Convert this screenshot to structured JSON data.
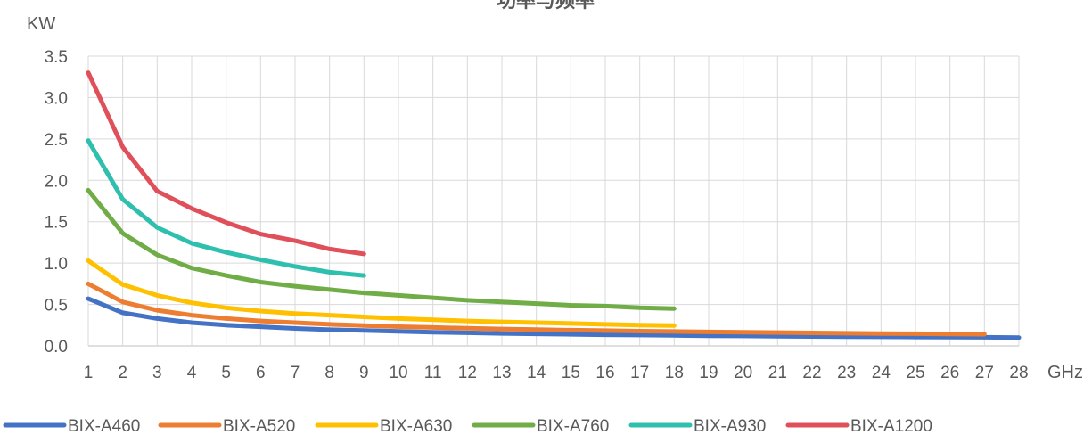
{
  "chart_data": {
    "type": "line",
    "title": "功率与频率",
    "ylabel": "KW",
    "xlabel": "GHz",
    "x": [
      1,
      2,
      3,
      4,
      5,
      6,
      7,
      8,
      9,
      10,
      11,
      12,
      13,
      14,
      15,
      16,
      17,
      18,
      19,
      20,
      21,
      22,
      23,
      24,
      25,
      26,
      27,
      28
    ],
    "xlim": [
      1,
      28
    ],
    "ylim": [
      0,
      3.5
    ],
    "yticks": [
      "0.0",
      "0.5",
      "1.0",
      "1.5",
      "2.0",
      "2.5",
      "3.0",
      "3.5"
    ],
    "grid": true,
    "legend_position": "bottom",
    "series": [
      {
        "name": "BIX-A460",
        "color": "#4472C4",
        "x": [
          1,
          2,
          3,
          4,
          5,
          6,
          7,
          8,
          9,
          10,
          11,
          12,
          13,
          14,
          15,
          16,
          17,
          18,
          19,
          20,
          21,
          22,
          23,
          24,
          25,
          26,
          27,
          28
        ],
        "values": [
          0.57,
          0.4,
          0.33,
          0.28,
          0.25,
          0.23,
          0.21,
          0.195,
          0.185,
          0.175,
          0.165,
          0.157,
          0.15,
          0.144,
          0.139,
          0.134,
          0.13,
          0.126,
          0.122,
          0.119,
          0.116,
          0.113,
          0.111,
          0.109,
          0.107,
          0.105,
          0.103,
          0.1
        ]
      },
      {
        "name": "BIX-A520",
        "color": "#ED7D31",
        "x": [
          1,
          2,
          3,
          4,
          5,
          6,
          7,
          8,
          9,
          10,
          11,
          12,
          13,
          14,
          15,
          16,
          17,
          18,
          19,
          20,
          21,
          22,
          23,
          24,
          25,
          26,
          27
        ],
        "values": [
          0.75,
          0.53,
          0.43,
          0.37,
          0.33,
          0.3,
          0.28,
          0.26,
          0.245,
          0.232,
          0.222,
          0.212,
          0.204,
          0.196,
          0.19,
          0.184,
          0.178,
          0.173,
          0.168,
          0.164,
          0.16,
          0.156,
          0.152,
          0.149,
          0.146,
          0.143,
          0.14
        ]
      },
      {
        "name": "BIX-A630",
        "color": "#FFC000",
        "x": [
          1,
          2,
          3,
          4,
          5,
          6,
          7,
          8,
          9,
          10,
          11,
          12,
          13,
          14,
          15,
          16,
          17,
          18
        ],
        "values": [
          1.03,
          0.74,
          0.61,
          0.52,
          0.46,
          0.42,
          0.39,
          0.37,
          0.35,
          0.33,
          0.315,
          0.3,
          0.29,
          0.28,
          0.27,
          0.26,
          0.25,
          0.245
        ]
      },
      {
        "name": "BIX-A760",
        "color": "#70AD47",
        "x": [
          1,
          2,
          3,
          4,
          5,
          6,
          7,
          8,
          9,
          10,
          11,
          12,
          13,
          14,
          15,
          16,
          17,
          18
        ],
        "values": [
          1.88,
          1.36,
          1.1,
          0.94,
          0.85,
          0.77,
          0.72,
          0.68,
          0.64,
          0.61,
          0.58,
          0.55,
          0.53,
          0.51,
          0.49,
          0.48,
          0.46,
          0.45
        ]
      },
      {
        "name": "BIX-A930",
        "color": "#2FBFAF",
        "x": [
          1,
          2,
          3,
          4,
          5,
          6,
          7,
          8,
          9
        ],
        "values": [
          2.48,
          1.77,
          1.43,
          1.24,
          1.13,
          1.04,
          0.96,
          0.89,
          0.85
        ]
      },
      {
        "name": "BIX-A1200",
        "color": "#E0505A",
        "x": [
          1,
          2,
          3,
          4,
          5,
          6,
          7,
          8,
          9
        ],
        "values": [
          3.3,
          2.4,
          1.87,
          1.66,
          1.49,
          1.35,
          1.27,
          1.17,
          1.11
        ]
      }
    ]
  }
}
